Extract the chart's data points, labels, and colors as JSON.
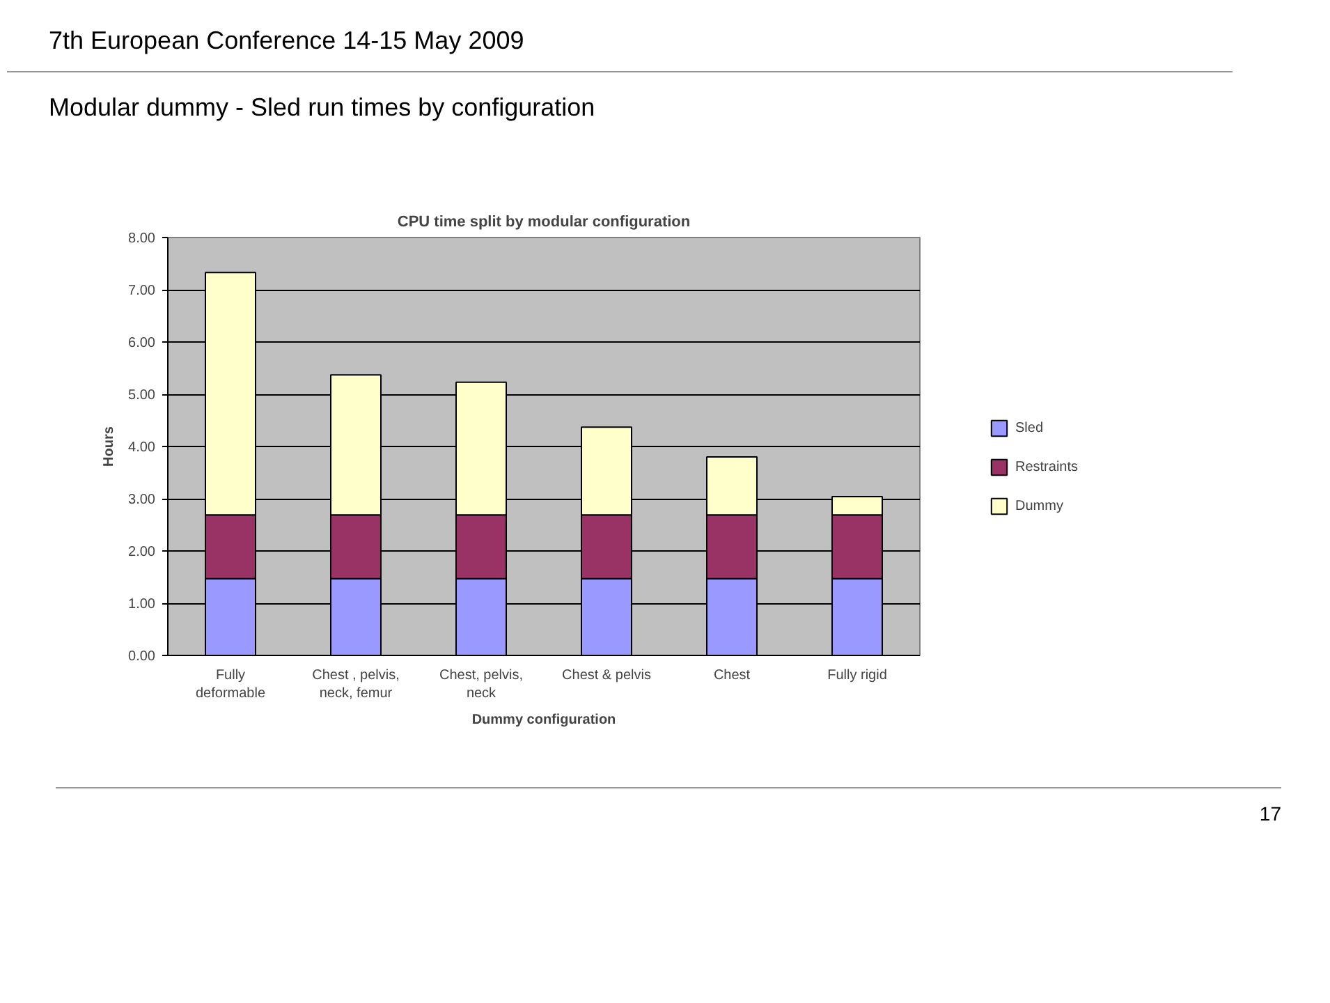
{
  "chart_data": {
    "type": "bar",
    "stacked": true,
    "title": "CPU time split by modular configuration",
    "subtitle": "Modular dummy - Sled run times by configuration",
    "xlabel": "Dummy configuration",
    "ylabel": "Hours",
    "categories": [
      "Fully deformable",
      "Chest , pelvis, neck, femur",
      "Chest, pelvis, neck",
      "Chest & pelvis",
      "Chest",
      "Fully rigid"
    ],
    "series": [
      {
        "name": "Sled",
        "color": "#9999ff",
        "values": [
          1.47,
          1.47,
          1.47,
          1.47,
          1.47,
          1.47
        ]
      },
      {
        "name": "Restraints",
        "color": "#993366",
        "values": [
          1.22,
          1.22,
          1.22,
          1.22,
          1.22,
          1.22
        ]
      },
      {
        "name": "Dummy",
        "color": "#ffffcc",
        "values": [
          4.64,
          2.68,
          2.54,
          1.68,
          1.11,
          0.35
        ]
      }
    ],
    "ylim": [
      0,
      8
    ],
    "yticks": [
      {
        "value": 0,
        "label": "0.00"
      },
      {
        "value": 1,
        "label": "1.00"
      },
      {
        "value": 2,
        "label": "2.00"
      },
      {
        "value": 3,
        "label": "3.00"
      },
      {
        "value": 4,
        "label": "4.00"
      },
      {
        "value": 5,
        "label": "5.00"
      },
      {
        "value": 6,
        "label": "6.00"
      },
      {
        "value": 7,
        "label": "7.00"
      },
      {
        "value": 8,
        "label": "8.00"
      }
    ],
    "grid": "y",
    "legend": "right",
    "annotations": [
      "7th European Conference 14-15 May 2009",
      "17"
    ]
  }
}
